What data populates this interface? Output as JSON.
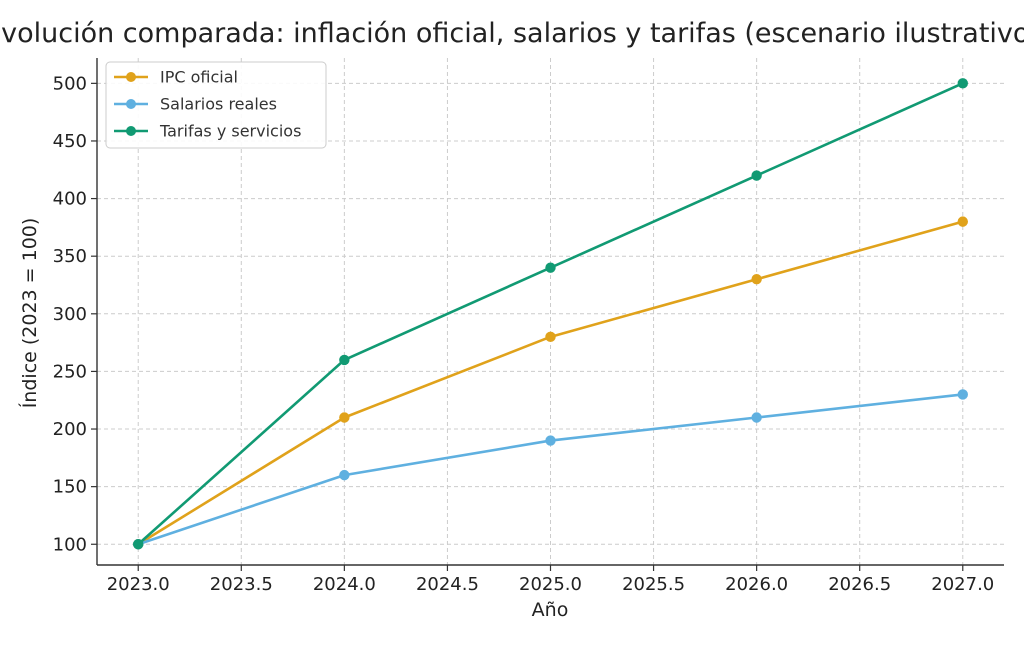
{
  "chart_data": {
    "type": "line",
    "title": "Evolución comparada: inflación oficial, salarios y tarifas (escenario ilustrativo)",
    "xlabel": "Año",
    "ylabel": "Índice (2023 = 100)",
    "x": [
      2023,
      2024,
      2025,
      2026,
      2027
    ],
    "xlim": [
      2022.8,
      2027.2
    ],
    "ylim": [
      82,
      522
    ],
    "xticks": [
      "2023.0",
      "2023.5",
      "2024.0",
      "2024.5",
      "2025.0",
      "2025.5",
      "2026.0",
      "2026.5",
      "2027.0"
    ],
    "yticks": [
      "100",
      "150",
      "200",
      "250",
      "300",
      "350",
      "400",
      "450",
      "500"
    ],
    "grid": true,
    "legend_position": "top-left",
    "series": [
      {
        "name": "IPC oficial",
        "color": "#e0a21b",
        "values": [
          100,
          210,
          280,
          330,
          380
        ]
      },
      {
        "name": "Salarios reales",
        "color": "#5fb0e0",
        "values": [
          100,
          160,
          190,
          210,
          230
        ]
      },
      {
        "name": "Tarifas y servicios",
        "color": "#119a73",
        "values": [
          100,
          260,
          340,
          420,
          500
        ]
      }
    ]
  }
}
